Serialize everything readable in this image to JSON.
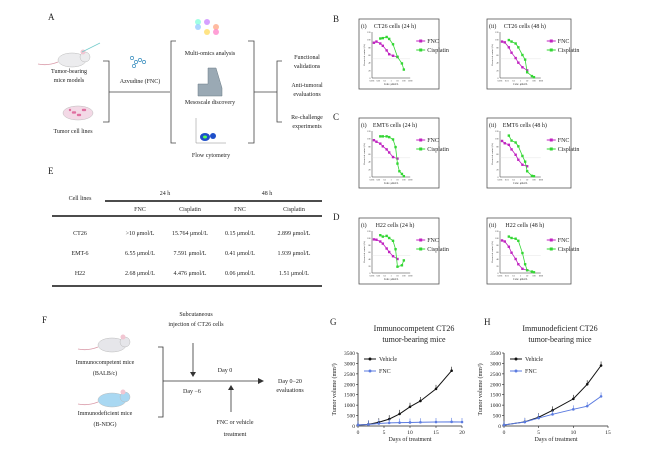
{
  "panel_labels": {
    "A": "A",
    "B": "B",
    "C": "C",
    "D": "D",
    "E": "E",
    "F": "F",
    "G": "G",
    "H": "H"
  },
  "panel_a": {
    "left_items": [
      {
        "lines": [
          "Tumor-bearing",
          "mice models"
        ]
      },
      {
        "lines": [
          "Tumor cell lines"
        ]
      }
    ],
    "drug": "Azvudine (FNC)",
    "methods": [
      "Multi-omics analysis",
      "Mesoscale discovery",
      "Flow cytometry"
    ],
    "outcomes": [
      {
        "lines": [
          "Functional",
          "validations"
        ]
      },
      {
        "lines": [
          "Anti-tumoral",
          "evaluations"
        ]
      },
      {
        "lines": [
          "Re-challenge",
          "experiments"
        ]
      }
    ]
  },
  "table_e": {
    "row_header": "Cell lines",
    "groups": [
      "24 h",
      "48 h"
    ],
    "subheaders": [
      "FNC",
      "Cisplatin",
      "FNC",
      "Cisplatin"
    ],
    "rows": [
      {
        "cell_line": "CT26",
        "values": [
          ">10 μmol/L",
          "15.764 μmol/L",
          "0.15 μmol/L",
          "2.899 μmol/L"
        ]
      },
      {
        "cell_line": "EMT-6",
        "values": [
          "6.55 μmol/L",
          "7.591 μmol/L",
          "0.41 μmol/L",
          "1.939 μmol/L"
        ]
      },
      {
        "cell_line": "H22",
        "values": [
          "2.68 μmol/L",
          "4.476 μmol/L",
          "0.06 μmol/L",
          "1.51 μmol/L"
        ]
      }
    ]
  },
  "panel_f": {
    "injection": [
      "Subcutaneous",
      "injection of CT26 cells"
    ],
    "mice": [
      {
        "lines": [
          "Immunocompetent mice",
          "(BALB/c)"
        ],
        "color": "#e6e6ea"
      },
      {
        "lines": [
          "Immunodeficient mice",
          "(B-NDG)"
        ],
        "color": "#a9d8f2"
      }
    ],
    "day_0": "Day 0",
    "day_minus6": "Day −6",
    "treatment": [
      "FNC or vehicle",
      "treatment"
    ],
    "evaluation": [
      "Day 0−20",
      "evaluations"
    ]
  },
  "colors": {
    "fnc_dose": "#c023c0",
    "cisplatin": "#33d633",
    "vehicle": "#111111",
    "fnc_tumor": "#5b7be0"
  },
  "chart_data": [
    {
      "id": "B-i",
      "type": "line",
      "panel": "B",
      "sub": "(i)",
      "title": "CT26 cells (24 h)",
      "xlabel": "Conc. μmol/L",
      "ylabel": "Percent of control (%)",
      "xscale": "log",
      "xlim": [
        0.001,
        1000
      ],
      "xticks": [
        "0.001",
        "0.01",
        "0.1",
        "1",
        "10",
        "100",
        "1000"
      ],
      "ylim": [
        0,
        120
      ],
      "yticks": [
        0,
        20,
        40,
        60,
        80,
        100,
        120
      ],
      "legend": "right",
      "series": [
        {
          "name": "FNC",
          "x": [
            0.002,
            0.005,
            0.02,
            0.05,
            0.2,
            0.5,
            2,
            10
          ],
          "y": [
            92,
            95,
            90,
            84,
            72,
            62,
            58,
            55
          ]
        },
        {
          "name": "Cisplatin",
          "x": [
            0.02,
            0.05,
            0.2,
            0.5,
            2,
            10,
            50,
            100
          ],
          "y": [
            103,
            104,
            107,
            102,
            88,
            55,
            38,
            22
          ]
        }
      ]
    },
    {
      "id": "B-ii",
      "type": "line",
      "panel": "",
      "sub": "(ii)",
      "title": "CT26 cells (48 h)",
      "xlabel": "Conc. μmol/L",
      "ylabel": "Percent of control (%)",
      "xscale": "log",
      "xlim": [
        0.001,
        1000
      ],
      "xticks": [
        "0.001",
        "0.01",
        "0.1",
        "1",
        "10",
        "100",
        "1000"
      ],
      "ylim": [
        0,
        120
      ],
      "yticks": [
        0,
        20,
        40,
        60,
        80,
        100,
        120
      ],
      "legend": "right",
      "series": [
        {
          "name": "FNC",
          "x": [
            0.002,
            0.005,
            0.02,
            0.05,
            0.2,
            0.5,
            2,
            10
          ],
          "y": [
            95,
            93,
            80,
            66,
            52,
            40,
            28,
            20
          ]
        },
        {
          "name": "Cisplatin",
          "x": [
            0.02,
            0.05,
            0.2,
            0.5,
            2,
            5,
            10,
            50,
            100
          ],
          "y": [
            99,
            95,
            90,
            80,
            60,
            48,
            15,
            5,
            2
          ]
        }
      ]
    },
    {
      "id": "C-i",
      "type": "line",
      "panel": "C",
      "sub": "(i)",
      "title": "EMT6 cells (24 h)",
      "xlabel": "Conc. μmol/L",
      "ylabel": "Percent of control (%)",
      "xscale": "log",
      "xlim": [
        0.001,
        1000
      ],
      "xticks": [
        "0.001",
        "0.01",
        "0.1",
        "1",
        "10",
        "100",
        "1000"
      ],
      "ylim": [
        0,
        120
      ],
      "yticks": [
        0,
        20,
        40,
        60,
        80,
        100,
        120
      ],
      "legend": "right",
      "series": [
        {
          "name": "FNC",
          "x": [
            0.002,
            0.005,
            0.02,
            0.05,
            0.2,
            0.5,
            2,
            10
          ],
          "y": [
            96,
            92,
            87,
            80,
            72,
            64,
            52,
            48
          ]
        },
        {
          "name": "Cisplatin",
          "x": [
            0.02,
            0.05,
            0.2,
            0.5,
            2,
            5,
            10,
            20,
            50,
            100
          ],
          "y": [
            106,
            106,
            106,
            104,
            98,
            78,
            35,
            15,
            8,
            2
          ]
        }
      ]
    },
    {
      "id": "C-ii",
      "type": "line",
      "panel": "",
      "sub": "(ii)",
      "title": "EMT6 cells (48 h)",
      "xlabel": "Conc. μmol/L",
      "ylabel": "Percent of control (%)",
      "xscale": "log",
      "xlim": [
        0.001,
        1000
      ],
      "xticks": [
        "0.001",
        "0.01",
        "0.1",
        "1",
        "10",
        "100",
        "1000"
      ],
      "ylim": [
        0,
        120
      ],
      "yticks": [
        0,
        20,
        40,
        60,
        80,
        100,
        120
      ],
      "legend": "right",
      "series": [
        {
          "name": "FNC",
          "x": [
            0.002,
            0.005,
            0.02,
            0.05,
            0.2,
            0.5,
            2,
            10
          ],
          "y": [
            94,
            88,
            84,
            72,
            58,
            45,
            32,
            28
          ]
        },
        {
          "name": "Cisplatin",
          "x": [
            0.02,
            0.05,
            0.2,
            0.5,
            2,
            5,
            10,
            50,
            100
          ],
          "y": [
            108,
            95,
            90,
            80,
            55,
            40,
            15,
            3,
            2
          ]
        }
      ]
    },
    {
      "id": "D-i",
      "type": "line",
      "panel": "D",
      "sub": "(i)",
      "title": "H22 cells (24 h)",
      "xlabel": "Conc. μmol/L",
      "ylabel": "Percent of control (%)",
      "xscale": "log",
      "xlim": [
        0.001,
        1000
      ],
      "xticks": [
        "0.001",
        "0.01",
        "0.1",
        "1",
        "10",
        "100",
        "1000"
      ],
      "ylim": [
        0,
        120
      ],
      "yticks": [
        0,
        20,
        40,
        60,
        80,
        100,
        120
      ],
      "legend": "right",
      "series": [
        {
          "name": "FNC",
          "x": [
            0.002,
            0.005,
            0.02,
            0.05,
            0.2,
            0.5,
            2,
            10
          ],
          "y": [
            96,
            95,
            90,
            84,
            70,
            60,
            48,
            40
          ]
        },
        {
          "name": "Cisplatin",
          "x": [
            0.02,
            0.05,
            0.2,
            0.5,
            2,
            5,
            10,
            50,
            100
          ],
          "y": [
            108,
            104,
            106,
            100,
            92,
            68,
            18,
            22,
            36
          ]
        }
      ]
    },
    {
      "id": "D-ii",
      "type": "line",
      "panel": "",
      "sub": "(ii)",
      "title": "H22 cells (48 h)",
      "xlabel": "Conc. μmol/L",
      "ylabel": "Percent of control (%)",
      "xscale": "log",
      "xlim": [
        0.001,
        1000
      ],
      "xticks": [
        "0.001",
        "0.01",
        "0.1",
        "1",
        "10",
        "100",
        "1000"
      ],
      "ylim": [
        0,
        120
      ],
      "yticks": [
        0,
        20,
        40,
        60,
        80,
        100,
        120
      ],
      "legend": "right",
      "series": [
        {
          "name": "FNC",
          "x": [
            0.002,
            0.005,
            0.02,
            0.05,
            0.2,
            0.5,
            2,
            10
          ],
          "y": [
            93,
            90,
            75,
            58,
            40,
            25,
            12,
            8
          ]
        },
        {
          "name": "Cisplatin",
          "x": [
            0.02,
            0.05,
            0.2,
            0.5,
            2,
            5,
            10,
            50,
            100
          ],
          "y": [
            104,
            100,
            98,
            92,
            57,
            25,
            8,
            4,
            2
          ]
        }
      ]
    },
    {
      "id": "G",
      "type": "line",
      "panel": "G",
      "title": [
        "Immunocompetent CT26",
        "tumor-bearing mice"
      ],
      "xlabel": "Days of treatment",
      "ylabel": "Tumor volume (mm³)",
      "xlim": [
        0,
        20
      ],
      "xticks": [
        0,
        5,
        10,
        15,
        20
      ],
      "ylim": [
        0,
        3500
      ],
      "yticks": [
        0,
        500,
        1000,
        1500,
        2000,
        2500,
        3000,
        3500
      ],
      "legend": "top-left",
      "series": [
        {
          "name": "Vehicle",
          "x": [
            0,
            2,
            4,
            6,
            8,
            10,
            12,
            15,
            18
          ],
          "y": [
            50,
            80,
            180,
            330,
            580,
            920,
            1200,
            1780,
            2650
          ]
        },
        {
          "name": "FNC",
          "x": [
            0,
            2,
            4,
            6,
            8,
            10,
            12,
            15,
            18,
            20
          ],
          "y": [
            50,
            70,
            120,
            150,
            160,
            170,
            180,
            190,
            200,
            190
          ]
        }
      ]
    },
    {
      "id": "H",
      "type": "line",
      "panel": "H",
      "title": [
        "Immunodeficient CT26",
        "tumor-bearing mice"
      ],
      "xlabel": "Days of treatment",
      "ylabel": "Tumor volume (mm³)",
      "xlim": [
        0,
        15
      ],
      "xticks": [
        0,
        5,
        10,
        15
      ],
      "ylim": [
        0,
        3500
      ],
      "yticks": [
        0,
        500,
        1000,
        1500,
        2000,
        2500,
        3000,
        3500
      ],
      "legend": "top-left",
      "series": [
        {
          "name": "Vehicle",
          "x": [
            0,
            3,
            5,
            7,
            10,
            12,
            14
          ],
          "y": [
            50,
            200,
            420,
            750,
            1300,
            2000,
            2900
          ]
        },
        {
          "name": "FNC",
          "x": [
            0,
            3,
            5,
            7,
            10,
            12,
            14
          ],
          "y": [
            50,
            190,
            380,
            560,
            800,
            950,
            1420
          ]
        }
      ]
    }
  ]
}
